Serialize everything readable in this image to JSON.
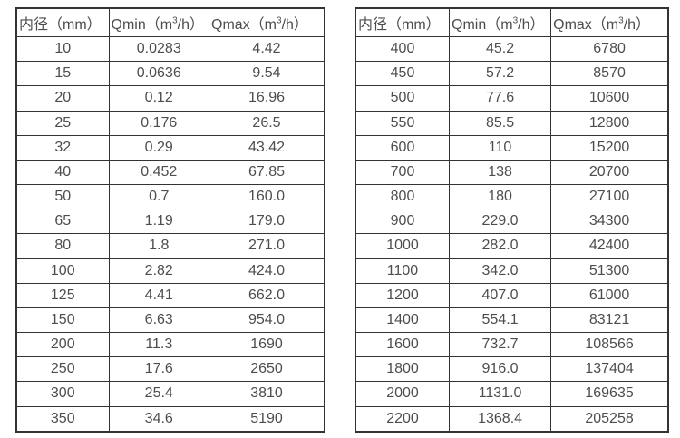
{
  "style": {
    "border_color": "#333333",
    "text_color": "#4d4d4d",
    "background_color": "#ffffff"
  },
  "headers": {
    "diameter": {
      "text": "内径（mm）"
    },
    "qmin": {
      "pre": "Qmin（m",
      "sup": "3",
      "post": "/h）"
    },
    "qmax": {
      "pre": "Qmax（m",
      "sup": "3",
      "post": "/h）"
    }
  },
  "tables": {
    "left": {
      "rows": [
        [
          "10",
          "0.0283",
          "4.42"
        ],
        [
          "15",
          "0.0636",
          "9.54"
        ],
        [
          "20",
          "0.12",
          "16.96"
        ],
        [
          "25",
          "0.176",
          "26.5"
        ],
        [
          "32",
          "0.29",
          "43.42"
        ],
        [
          "40",
          "0.452",
          "67.85"
        ],
        [
          "50",
          "0.7",
          "160.0"
        ],
        [
          "65",
          "1.19",
          "179.0"
        ],
        [
          "80",
          "1.8",
          "271.0"
        ],
        [
          "100",
          "2.82",
          "424.0"
        ],
        [
          "125",
          "4.41",
          "662.0"
        ],
        [
          "150",
          "6.63",
          "954.0"
        ],
        [
          "200",
          "11.3",
          "1690"
        ],
        [
          "250",
          "17.6",
          "2650"
        ],
        [
          "300",
          "25.4",
          "3810"
        ],
        [
          "350",
          "34.6",
          "5190"
        ]
      ]
    },
    "right": {
      "rows": [
        [
          "400",
          "45.2",
          "6780"
        ],
        [
          "450",
          "57.2",
          "8570"
        ],
        [
          "500",
          "77.6",
          "10600"
        ],
        [
          "550",
          "85.5",
          "12800"
        ],
        [
          "600",
          "110",
          "15200"
        ],
        [
          "700",
          "138",
          "20700"
        ],
        [
          "800",
          "180",
          "27100"
        ],
        [
          "900",
          "229.0",
          "34300"
        ],
        [
          "1000",
          "282.0",
          "42400"
        ],
        [
          "1100",
          "342.0",
          "51300"
        ],
        [
          "1200",
          "407.0",
          "61000"
        ],
        [
          "1400",
          "554.1",
          "83121"
        ],
        [
          "1600",
          "732.7",
          "108566"
        ],
        [
          "1800",
          "916.0",
          "137404"
        ],
        [
          "2000",
          "1131.0",
          "169635"
        ],
        [
          "2200",
          "1368.4",
          "205258"
        ]
      ]
    }
  }
}
